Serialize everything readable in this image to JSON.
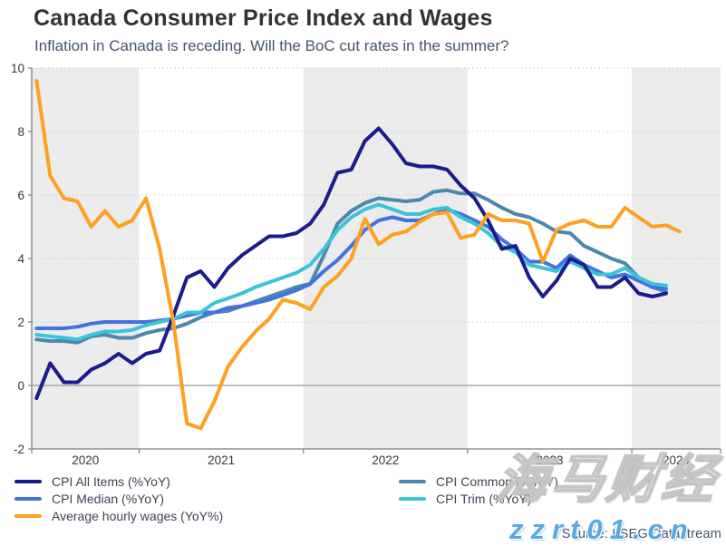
{
  "header": {
    "title": "Canada Consumer Price Index and Wages",
    "subtitle": "Inflation in Canada is receding. Will the BoC cut rates in the summer?"
  },
  "source_label": "Source: LSEG Datastream",
  "watermark": {
    "line1": "海马财经",
    "line2": "zzrt01.cn"
  },
  "chart_data": {
    "type": "line",
    "title": "Canada Consumer Price Index and Wages",
    "subtitle": "Inflation in Canada is receding. Will the BoC cut rates in the summer?",
    "x_start": "2020-05",
    "x_frequency": "monthly",
    "x_tick_labels": [
      "2020",
      "2021",
      "2022",
      "2023",
      "2024"
    ],
    "y_tick_labels": [
      "-2",
      "0",
      "2",
      "4",
      "6",
      "8",
      "10"
    ],
    "ylim": [
      -2,
      10
    ],
    "grid": "horizontal-dotted",
    "zero_line": true,
    "shaded_year_bands": [
      "2020",
      "2022",
      "2024"
    ],
    "legend_position": "bottom-two-columns",
    "series": [
      {
        "name": "CPI All Items (%YoY)",
        "color": "#1b1b8e",
        "values": [
          -0.4,
          0.7,
          0.1,
          0.1,
          0.5,
          0.7,
          1.0,
          0.7,
          1.0,
          1.1,
          2.2,
          3.4,
          3.6,
          3.1,
          3.7,
          4.1,
          4.4,
          4.7,
          4.7,
          4.8,
          5.1,
          5.7,
          6.7,
          6.8,
          7.7,
          8.1,
          7.6,
          7.0,
          6.9,
          6.9,
          6.8,
          6.3,
          5.9,
          5.2,
          4.3,
          4.4,
          3.4,
          2.8,
          3.3,
          4.0,
          3.8,
          3.1,
          3.1,
          3.4,
          2.9,
          2.8,
          2.9
        ]
      },
      {
        "name": "CPI Median (%YoY)",
        "color": "#4372e0",
        "values": [
          1.8,
          1.8,
          1.8,
          1.85,
          1.95,
          2.0,
          2.0,
          2.0,
          2.0,
          2.05,
          2.1,
          2.2,
          2.3,
          2.3,
          2.45,
          2.5,
          2.6,
          2.7,
          2.85,
          3.0,
          3.2,
          3.6,
          3.95,
          4.4,
          4.9,
          5.2,
          5.3,
          5.2,
          5.2,
          5.4,
          5.55,
          5.4,
          5.2,
          5.0,
          4.6,
          4.3,
          3.9,
          3.9,
          3.7,
          4.1,
          3.8,
          3.6,
          3.4,
          3.5,
          3.3,
          3.1,
          3.05
        ]
      },
      {
        "name": "Average hourly wages (YoY%)",
        "color": "#ffa01e",
        "values": [
          9.6,
          6.6,
          5.9,
          5.8,
          5.0,
          5.5,
          5.0,
          5.2,
          5.9,
          4.3,
          2.0,
          -1.2,
          -1.35,
          -0.5,
          0.6,
          1.2,
          1.7,
          2.1,
          2.7,
          2.6,
          2.4,
          3.1,
          3.45,
          4.0,
          5.25,
          4.45,
          4.75,
          4.85,
          5.15,
          5.4,
          5.45,
          4.65,
          4.75,
          5.4,
          5.2,
          5.2,
          5.1,
          3.9,
          4.9,
          5.1,
          5.2,
          5.0,
          5.0,
          5.6,
          5.3,
          5.0,
          5.05,
          4.85
        ]
      },
      {
        "name": "CPI Common (%YoY)",
        "color": "#4e87ae",
        "values": [
          1.45,
          1.4,
          1.4,
          1.35,
          1.55,
          1.6,
          1.5,
          1.5,
          1.65,
          1.75,
          1.8,
          1.95,
          2.15,
          2.3,
          2.35,
          2.5,
          2.65,
          2.8,
          2.95,
          3.1,
          3.2,
          4.1,
          5.1,
          5.5,
          5.75,
          5.9,
          5.85,
          5.8,
          5.85,
          6.1,
          6.15,
          6.05,
          6.05,
          5.85,
          5.6,
          5.4,
          5.3,
          5.1,
          4.85,
          4.8,
          4.4,
          4.2,
          4.0,
          3.85,
          3.4,
          3.1,
          2.95
        ]
      },
      {
        "name": "CPI Trim (%YoY)",
        "color": "#3bc3d8",
        "values": [
          1.6,
          1.55,
          1.5,
          1.45,
          1.6,
          1.7,
          1.7,
          1.75,
          1.9,
          2.0,
          2.1,
          2.3,
          2.3,
          2.6,
          2.75,
          2.9,
          3.1,
          3.25,
          3.4,
          3.55,
          3.8,
          4.3,
          4.9,
          5.3,
          5.55,
          5.7,
          5.55,
          5.4,
          5.4,
          5.55,
          5.6,
          5.3,
          5.1,
          4.8,
          4.4,
          4.2,
          3.8,
          3.7,
          3.6,
          3.9,
          3.7,
          3.5,
          3.5,
          3.7,
          3.4,
          3.2,
          3.15
        ]
      }
    ]
  }
}
